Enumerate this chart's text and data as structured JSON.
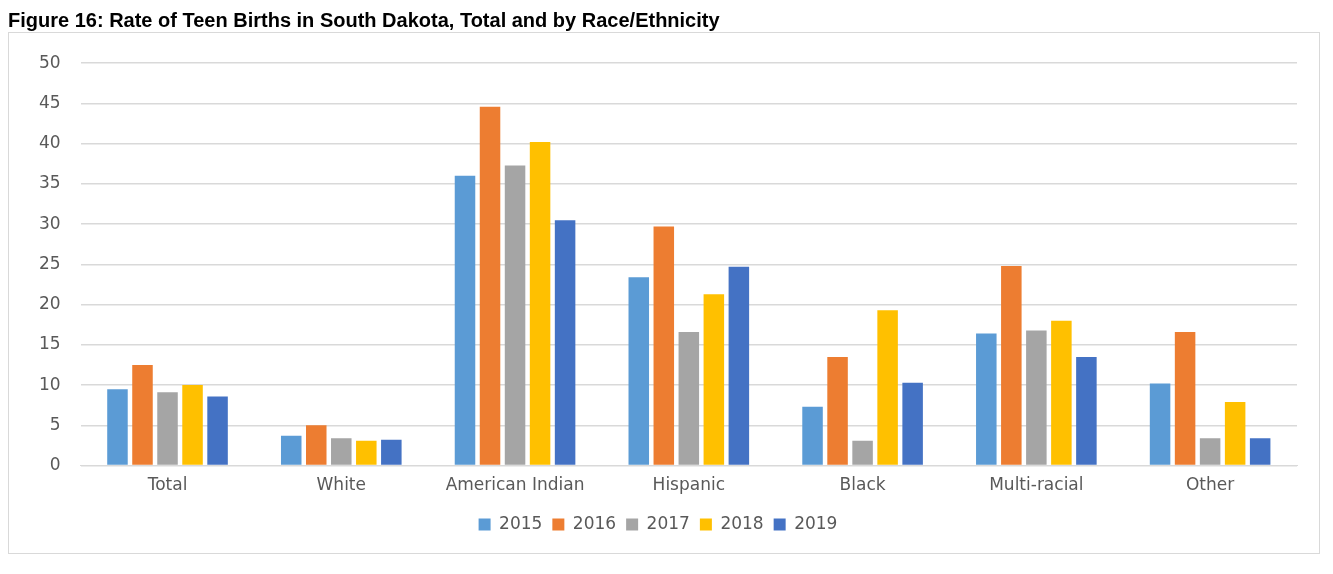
{
  "chart_data": {
    "type": "bar",
    "title": "Figure 16: Rate of Teen Births in South Dakota, Total and by Race/Ethnicity",
    "categories": [
      "Total",
      "White",
      "American Indian",
      "Hispanic",
      "Black",
      "Multi-racial",
      "Other"
    ],
    "series": [
      {
        "name": "2015",
        "color": "#5b9bd5",
        "values": [
          9.5,
          3.7,
          36.0,
          23.4,
          7.3,
          16.4,
          10.2
        ]
      },
      {
        "name": "2016",
        "color": "#ed7d31",
        "values": [
          12.5,
          5.0,
          44.6,
          29.7,
          13.5,
          24.8,
          16.6
        ]
      },
      {
        "name": "2017",
        "color": "#a5a5a5",
        "values": [
          9.1,
          3.4,
          37.3,
          16.6,
          3.1,
          16.8,
          3.4
        ]
      },
      {
        "name": "2018",
        "color": "#ffc000",
        "values": [
          10.0,
          3.1,
          40.2,
          21.3,
          19.3,
          18.0,
          7.9
        ]
      },
      {
        "name": "2019",
        "color": "#4472c4",
        "values": [
          8.6,
          3.2,
          30.5,
          24.7,
          10.3,
          13.5,
          3.4
        ]
      }
    ],
    "ylim": [
      0,
      50
    ],
    "yticks": [
      0,
      5,
      10,
      15,
      20,
      25,
      30,
      35,
      40,
      45,
      50
    ],
    "grid": "y",
    "legend": "bottom"
  }
}
